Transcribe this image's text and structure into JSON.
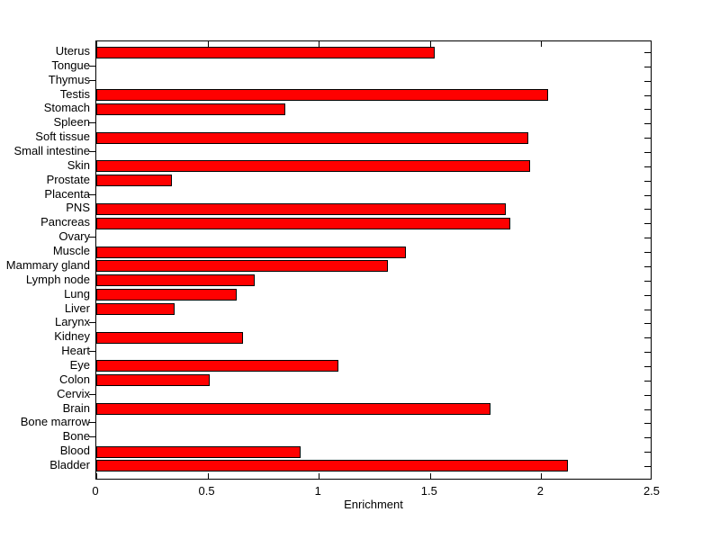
{
  "chart_data": {
    "type": "bar",
    "orientation": "horizontal",
    "title": "",
    "xlabel": "Enrichment",
    "ylabel": "",
    "xlim": [
      0,
      2.5
    ],
    "grid": false,
    "legend": false,
    "bar_color": "#ff0000",
    "bar_edge_color": "#000000",
    "axis_color": "#000000",
    "background_color": "#ffffff",
    "xtick_values": [
      0,
      0.5,
      1,
      1.5,
      2,
      2.5
    ],
    "xtick_labels": [
      "0",
      "0.5",
      "1",
      "1.5",
      "2",
      "2.5"
    ],
    "categories": [
      "Uterus",
      "Tongue",
      "Thymus",
      "Testis",
      "Stomach",
      "Spleen",
      "Soft tissue",
      "Small intestine",
      "Skin",
      "Prostate",
      "Placenta",
      "PNS",
      "Pancreas",
      "Ovary",
      "Muscle",
      "Mammary gland",
      "Lymph node",
      "Lung",
      "Liver",
      "Larynx",
      "Kidney",
      "Heart",
      "Eye",
      "Colon",
      "Cervix",
      "Brain",
      "Bone marrow",
      "Bone",
      "Blood",
      "Bladder"
    ],
    "values": [
      1.52,
      0,
      0,
      2.03,
      0.85,
      0,
      1.94,
      0,
      1.95,
      0.34,
      0,
      1.84,
      1.86,
      0,
      1.39,
      1.31,
      0.71,
      0.63,
      0.35,
      0,
      0.66,
      0,
      1.09,
      0.51,
      0,
      1.77,
      0,
      0,
      0.92,
      2.12
    ]
  }
}
